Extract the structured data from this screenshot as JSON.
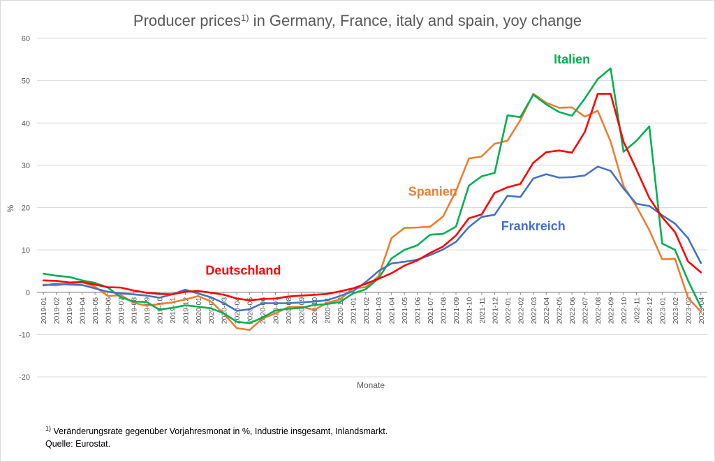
{
  "chart_data": {
    "type": "line",
    "title": {
      "main": "Producer prices",
      "sup": "1)",
      "rest": " in Germany, France, italy and spain, yoy change"
    },
    "ylabel": "%",
    "xlabel": "Monate",
    "ylim": [
      -20,
      60
    ],
    "yticks": [
      -20,
      -10,
      0,
      10,
      20,
      30,
      40,
      50,
      60
    ],
    "grid": true,
    "legend": "inline labels",
    "x": [
      "2019-01",
      "2019-02",
      "2019-03",
      "2019-04",
      "2019-05",
      "2019-06",
      "2019-07",
      "2019-08",
      "2019-09",
      "2019-10",
      "2019-11",
      "2019-12",
      "2020-01",
      "2020-02",
      "2020-03",
      "2020-04",
      "2020-05",
      "2020-06",
      "2020-07",
      "2020-08",
      "2020-09",
      "2020-10",
      "2020-11",
      "2020-12",
      "2021-01",
      "2021-02",
      "2021-03",
      "2021-04",
      "2021-05",
      "2021-06",
      "2021-07",
      "2021-08",
      "2021-09",
      "2021-10",
      "2021-11",
      "2021-12",
      "2022-01",
      "2022-02",
      "2022-03",
      "2022-04",
      "2022-05",
      "2022-06",
      "2022-07",
      "2022-08",
      "2022-09",
      "2022-10",
      "2022-11",
      "2022-12",
      "2023-01",
      "2023-02",
      "2023-03",
      "2023-04"
    ],
    "series": [
      {
        "name": "Deutschland",
        "color": "#ff0000",
        "values": [
          2.8,
          2.7,
          2.3,
          2.4,
          1.8,
          1.2,
          1.1,
          0.4,
          -0.1,
          -0.4,
          -0.5,
          0.1,
          0.3,
          -0.1,
          -0.6,
          -1.5,
          -1.9,
          -1.6,
          -1.5,
          -1.0,
          -0.8,
          -0.6,
          -0.4,
          0.2,
          0.9,
          2.0,
          3.2,
          4.5,
          6.3,
          7.5,
          9.3,
          10.8,
          13.4,
          17.5,
          18.4,
          23.5,
          24.8,
          25.6,
          30.6,
          33.1,
          33.5,
          33.0,
          37.9,
          46.9,
          46.9,
          35.6,
          29.0,
          22.3,
          17.7,
          14.2,
          7.3,
          4.7
        ]
      },
      {
        "name": "Frankreich",
        "color": "#4472c4",
        "values": [
          1.6,
          2.0,
          1.8,
          1.7,
          0.9,
          0.1,
          -0.3,
          -0.5,
          -0.8,
          -1.3,
          -0.5,
          0.6,
          -0.3,
          -1.2,
          -2.6,
          -4.4,
          -4.0,
          -2.6,
          -2.6,
          -2.6,
          -2.4,
          -2.2,
          -1.9,
          -0.9,
          0.2,
          2.4,
          5.0,
          6.8,
          7.2,
          7.7,
          8.8,
          10.1,
          11.9,
          15.4,
          17.8,
          18.3,
          22.8,
          22.5,
          26.9,
          27.9,
          27.1,
          27.2,
          27.6,
          29.7,
          28.7,
          24.5,
          20.9,
          20.4,
          18.2,
          16.2,
          12.8,
          6.9
        ]
      },
      {
        "name": "Spanien",
        "color": "#ed7d31",
        "values": [
          1.8,
          1.6,
          2.0,
          2.4,
          1.3,
          -0.9,
          -0.7,
          -2.5,
          -3.2,
          -2.8,
          -2.4,
          -1.7,
          -0.9,
          -2.2,
          -5.1,
          -8.5,
          -8.9,
          -6.2,
          -5.0,
          -3.5,
          -3.4,
          -4.2,
          -2.5,
          -1.7,
          0.9,
          1.2,
          3.8,
          12.8,
          15.2,
          15.3,
          15.5,
          17.9,
          23.9,
          31.6,
          32.1,
          35.1,
          35.8,
          40.7,
          46.9,
          44.8,
          43.6,
          43.7,
          41.5,
          42.9,
          35.6,
          25.1,
          20.3,
          14.7,
          7.8,
          7.9,
          -1.3,
          -4.6
        ]
      },
      {
        "name": "Italien",
        "color": "#00b050",
        "values": [
          4.4,
          3.9,
          3.6,
          2.8,
          2.2,
          1.1,
          -1.2,
          -2.2,
          -2.3,
          -4.1,
          -3.7,
          -3.1,
          -3.4,
          -3.8,
          -5.0,
          -7.0,
          -7.3,
          -6.0,
          -4.3,
          -3.9,
          -3.7,
          -3.0,
          -2.8,
          -2.3,
          -0.3,
          0.7,
          3.3,
          8.0,
          10.0,
          11.1,
          13.6,
          13.8,
          15.5,
          25.2,
          27.4,
          28.2,
          41.8,
          41.4,
          46.7,
          44.4,
          42.6,
          41.7,
          45.8,
          50.4,
          52.9,
          33.2,
          35.8,
          39.2,
          11.5,
          10.0,
          2.8,
          -3.5
        ]
      }
    ],
    "label_positions": {
      "Deutschland": "2019-12..2020-07",
      "Frankreich": "2021-11..2022-07",
      "Spanien": "2021-04..2021-09",
      "Italien": "2022-04..2022-08"
    }
  },
  "footnote": {
    "sup": "1)",
    "text": " Veränderungsrate gegenüber Vorjahresmonat in %, Industrie insgesamt, Inlandsmarkt."
  },
  "source": "Quelle: Eurostat."
}
